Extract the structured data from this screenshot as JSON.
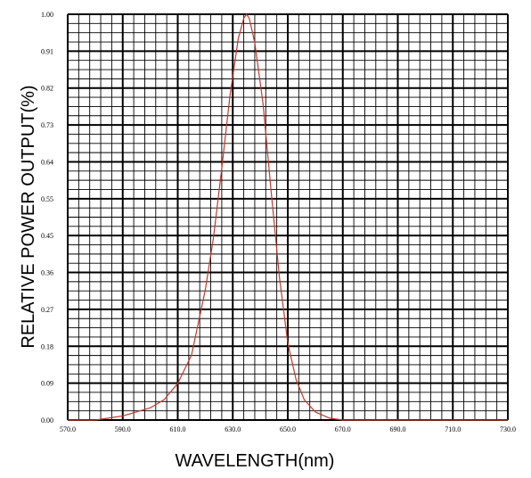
{
  "chart_data": {
    "type": "line",
    "title": "",
    "xlabel": "WAVELENGTH(nm)",
    "ylabel": "RELATIVE POWER OUTPUT(%)",
    "xlim": [
      570,
      730
    ],
    "ylim": [
      0,
      1.0
    ],
    "x_ticks": [
      "570.0",
      "590.0",
      "610.0",
      "630.0",
      "650.0",
      "670.0",
      "690.0",
      "710.0",
      "730.0"
    ],
    "y_ticks": [
      "0.00",
      "0.09",
      "0.18",
      "0.27",
      "0.36",
      "0.45",
      "0.55",
      "0.64",
      "0.73",
      "0.82",
      "0.91",
      "1.00"
    ],
    "grid": true,
    "minor_grid": true,
    "colors": {
      "curve": "#c0392b",
      "grid": "#000000",
      "background": "#ffffff"
    },
    "series": [
      {
        "x": [
          570,
          580,
          590,
          600,
          605,
          610,
          615,
          620,
          623,
          626,
          629,
          632,
          634,
          635,
          636,
          638,
          641,
          644,
          647,
          650,
          653,
          656,
          660,
          665,
          670,
          680,
          690,
          700,
          710,
          720,
          730
        ],
        "values": [
          0.0,
          0.0,
          0.01,
          0.03,
          0.05,
          0.09,
          0.16,
          0.32,
          0.45,
          0.62,
          0.8,
          0.94,
          0.99,
          1.0,
          0.99,
          0.93,
          0.78,
          0.56,
          0.35,
          0.19,
          0.1,
          0.05,
          0.02,
          0.005,
          0.0,
          0.0,
          0.0,
          0.0,
          0.0,
          0.0,
          0.0
        ]
      }
    ]
  }
}
